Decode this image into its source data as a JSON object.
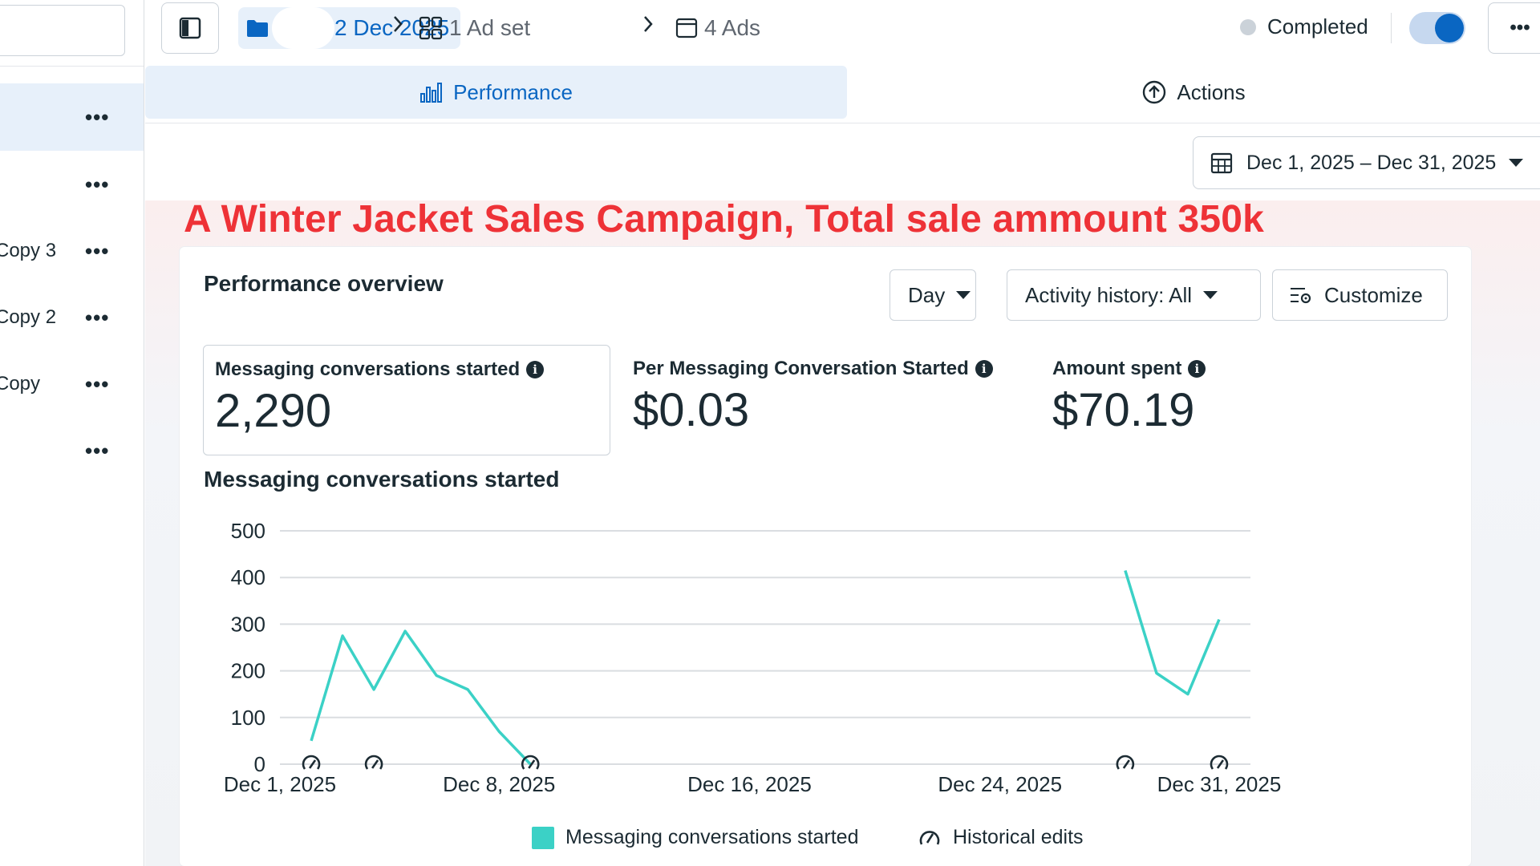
{
  "sidebar": {
    "items": [
      {
        "label": "",
        "selected": true
      },
      {
        "label": "",
        "selected": false
      },
      {
        "label": "Copy 3",
        "selected": false
      },
      {
        "label": "Copy 2",
        "selected": false
      },
      {
        "label": "Copy",
        "selected": false
      },
      {
        "label": "",
        "selected": false
      }
    ],
    "more_glyph": "•••"
  },
  "breadcrumb": {
    "campaign": "2 Dec 2025",
    "adset": "1 Ad set",
    "ads": "4 Ads"
  },
  "status": {
    "label": "Completed",
    "toggle_on": true
  },
  "tabs": {
    "performance": "Performance",
    "actions": "Actions"
  },
  "date_range": "Dec 1, 2025 – Dec 31, 2025",
  "headline": "A Winter Jacket Sales Campaign, Total sale ammount 350k",
  "overview": {
    "title": "Performance overview",
    "day_label": "Day",
    "activity_label": "Activity history: All",
    "customize_label": "Customize"
  },
  "metrics": [
    {
      "label": "Messaging conversations started",
      "value": "2,290"
    },
    {
      "label": "Per Messaging Conversation Started",
      "value": "$0.03"
    },
    {
      "label": "Amount spent",
      "value": "$70.19"
    }
  ],
  "chart_title": "Messaging conversations started",
  "chart_data": {
    "type": "line",
    "title": "Messaging conversations started",
    "xlabel": "",
    "ylabel": "",
    "ylim": [
      0,
      500
    ],
    "yticks": [
      "500",
      "400",
      "300",
      "200",
      "100",
      "0"
    ],
    "ytick_values": [
      500,
      400,
      300,
      200,
      100,
      0
    ],
    "xtick_labels": [
      "Dec 1, 2025",
      "Dec 8, 2025",
      "Dec 16, 2025",
      "Dec 24, 2025",
      "Dec 31, 2025"
    ],
    "xtick_days": [
      1,
      8,
      16,
      24,
      31
    ],
    "x_domain": [
      1,
      32
    ],
    "grid": true,
    "series": [
      {
        "name": "Messaging conversations started",
        "color": "#3bd1c6",
        "segments": [
          {
            "x": [
              2,
              3,
              4,
              5,
              6,
              7,
              8,
              9
            ],
            "y": [
              50,
              275,
              160,
              285,
              190,
              160,
              70,
              0
            ]
          },
          {
            "x": [
              28,
              29,
              30,
              31
            ],
            "y": [
              415,
              195,
              150,
              310
            ]
          }
        ]
      }
    ],
    "historical_edit_days": [
      2,
      4,
      9,
      28,
      31
    ],
    "legend": [
      {
        "label": "Messaging conversations started",
        "kind": "swatch"
      },
      {
        "label": "Historical edits",
        "kind": "icon"
      }
    ],
    "legend_position": "bottom"
  }
}
